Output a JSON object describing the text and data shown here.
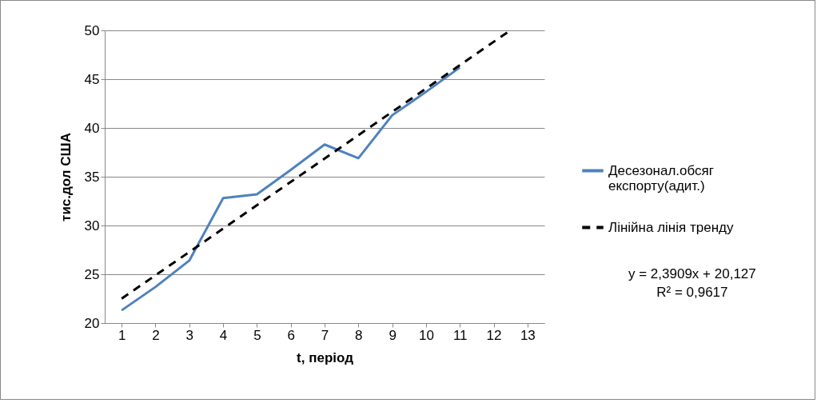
{
  "chart_data": {
    "type": "line",
    "xlabel": "t, період",
    "ylabel": "тис.дол США",
    "xlim": [
      0.5,
      13.5
    ],
    "xticks": [
      1,
      2,
      3,
      4,
      5,
      6,
      7,
      8,
      9,
      10,
      11,
      12,
      13
    ],
    "ylim": [
      20,
      50
    ],
    "yticks": [
      20,
      25,
      30,
      35,
      40,
      45,
      50
    ],
    "grid": "y",
    "legend": "right",
    "marker": "none",
    "series": [
      {
        "name": "Десезонал.обсяг експорту(адит.)",
        "color": "#4f81bd",
        "line_style": "solid",
        "x": [
          1,
          2,
          3,
          4,
          5,
          6,
          7,
          8,
          9,
          10,
          11
        ],
        "values": [
          21.3,
          23.7,
          26.4,
          32.8,
          33.2,
          35.7,
          38.3,
          36.9,
          41.3,
          43.7,
          46.2
        ]
      },
      {
        "name": "Лінійна лінія тренду",
        "color": "#000000",
        "line_style": "dashed",
        "x": [
          1,
          12.49
        ],
        "values": [
          22.5,
          50
        ]
      }
    ],
    "annotations": [
      "y = 2,3909x + 20,127",
      "R² = 0,9617"
    ]
  }
}
